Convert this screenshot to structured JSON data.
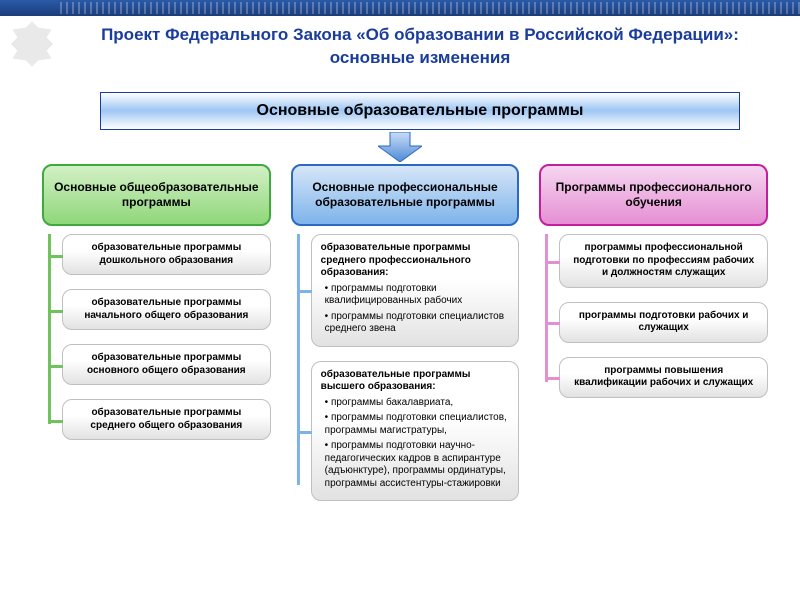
{
  "title": "Проект Федерального Закона «Об образовании в Российской Федерации»: основные изменения",
  "main_header": "Основные образовательные программы",
  "colors": {
    "title": "#1a3d9c",
    "header_border": "#1a3d9c",
    "arrow_top": "#c9ddf6",
    "arrow_bottom": "#4e8ad6"
  },
  "columns": [
    {
      "header": "Основные общеобразовательные программы",
      "border": "#3fa83f",
      "fill_top": "#d3f0c6",
      "fill_bottom": "#8fd77a",
      "line": "#6fc25c",
      "item_grad": "#e2e2e2",
      "item_border": "#c0c0c0",
      "items": [
        {
          "type": "simple",
          "text": "образовательные программы дошкольного образования"
        },
        {
          "type": "simple",
          "text": "образовательные программы начального общего образования"
        },
        {
          "type": "simple",
          "text": "образовательные программы основного общего образования"
        },
        {
          "type": "simple",
          "text": "образовательные программы среднего общего образования"
        }
      ]
    },
    {
      "header": "Основные профессиональные образовательные программы",
      "border": "#2a6ac2",
      "fill_top": "#d6e6f8",
      "fill_bottom": "#7eb3ea",
      "line": "#7eb3ea",
      "item_grad": "#e2e2e2",
      "item_border": "#c0c0c0",
      "items": [
        {
          "type": "complex",
          "title": "образовательные программы среднего профессионального образования:",
          "bullets": [
            "программы подготовки квалифицированных рабочих",
            "программы подготовки специалистов среднего звена"
          ]
        },
        {
          "type": "complex",
          "title": "образовательные программы высшего образования:",
          "bullets": [
            "программы бакалавриата,",
            "программы подготовки специалистов, программы магистратуры,",
            "программы подготовки научно-педагогических кадров в аспирантуре (адъюнктуре), программы ординатуры, программы ассистентуры-стажировки"
          ]
        }
      ]
    },
    {
      "header": "Программы профессионального обучения",
      "border": "#c21e9e",
      "fill_top": "#f6d6f0",
      "fill_bottom": "#e58fd3",
      "line": "#e58fd3",
      "item_grad": "#e2e2e2",
      "item_border": "#c0c0c0",
      "items": [
        {
          "type": "simple",
          "text": "программы профессиональной подготовки по профессиям рабочих и должностям служащих"
        },
        {
          "type": "simple",
          "text": "программы подготовки рабочих и служащих"
        },
        {
          "type": "simple",
          "text": "программы повышения квалификации рабочих и служащих"
        }
      ]
    }
  ]
}
